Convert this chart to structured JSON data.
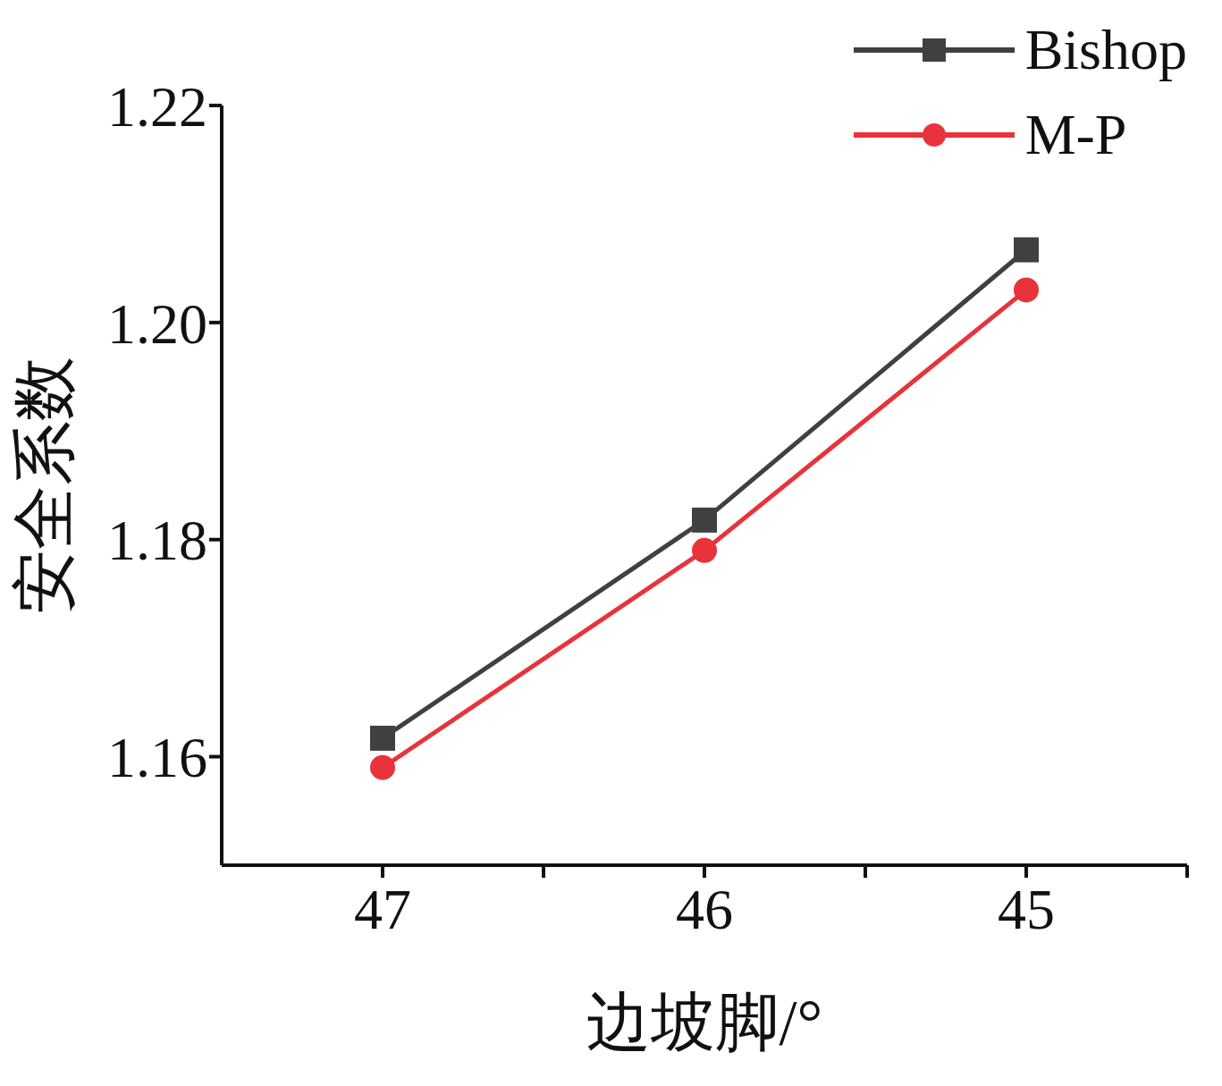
{
  "chart_data": {
    "type": "line",
    "xlabel": "边坡脚/°",
    "ylabel": "安全系数",
    "x": [
      47,
      46,
      45
    ],
    "series": [
      {
        "name": "Bishop",
        "color": "#404040",
        "marker": "square",
        "values": [
          1.1617,
          1.1818,
          1.2067
        ]
      },
      {
        "name": "M-P",
        "color": "#e8333a",
        "marker": "circle",
        "values": [
          1.159,
          1.179,
          1.203
        ]
      }
    ],
    "xlim": [
      47.5,
      44.5
    ],
    "xticks": [
      47,
      {
        "value": 46.5,
        "label": null
      },
      46,
      {
        "value": 45.5,
        "label": null
      },
      45,
      {
        "value": 44.5,
        "label": null
      }
    ],
    "ylim": [
      1.15,
      1.22
    ],
    "yticks": [
      1.16,
      1.18,
      {
        "value": 1.2,
        "label": "1.20"
      },
      1.22
    ],
    "grid": false,
    "legend": "top right"
  }
}
